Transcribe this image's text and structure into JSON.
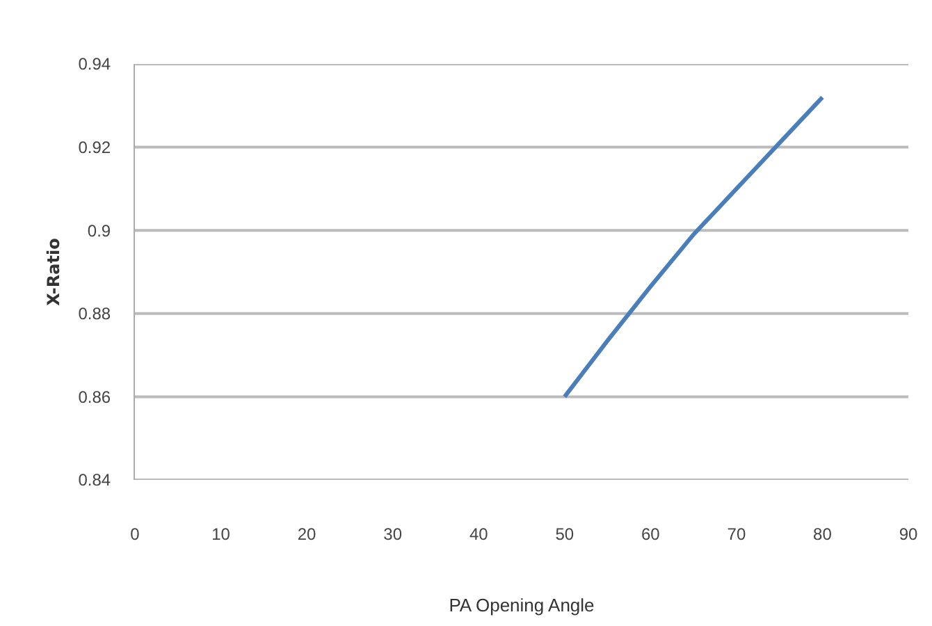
{
  "chart_data": {
    "type": "line",
    "xlabel": "PA Opening Angle",
    "ylabel": "X-Ratio",
    "x": [
      50,
      55,
      60,
      65,
      70,
      75,
      80
    ],
    "series": [
      {
        "color": "#4a7ebb",
        "values": [
          0.86,
          0.8735,
          0.8865,
          0.899,
          0.91,
          0.921,
          0.932
        ]
      }
    ],
    "xlim": [
      0,
      90
    ],
    "xticks": [
      0,
      10,
      20,
      30,
      40,
      50,
      60,
      70,
      80,
      90
    ],
    "ylim": [
      0.84,
      0.94
    ],
    "yticks": [
      0.84,
      0.86,
      0.88,
      0.9,
      0.92,
      0.94
    ],
    "grid": "y",
    "marker": "none",
    "line_style": "solid"
  }
}
